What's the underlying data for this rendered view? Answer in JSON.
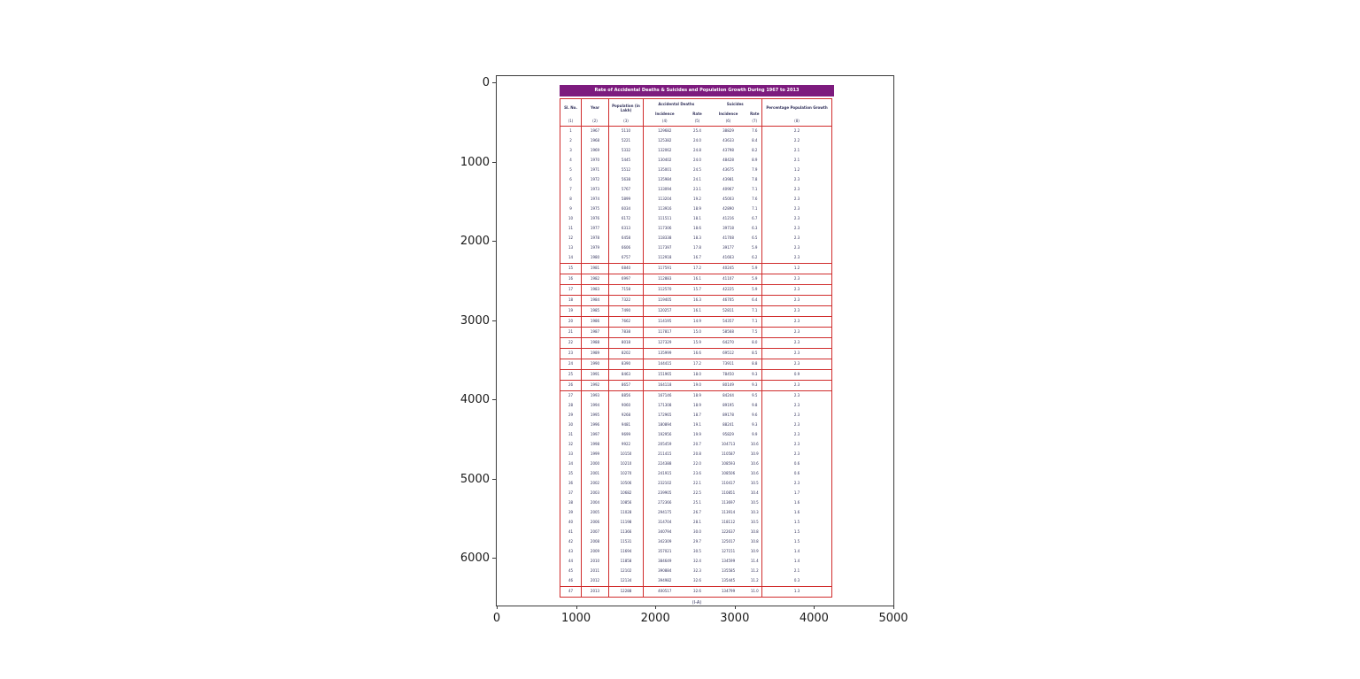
{
  "colors": {
    "table_border": "#d02c2c",
    "title_bar_bg": "#7d1b7e",
    "title_bar_text": "#ffffff",
    "table_text": "#33335c"
  },
  "chart_data": {
    "type": "table",
    "title": "Rate of Accidental Deaths & Suicides and Population Growth During 1967 to 2013",
    "caption": "(I-A)",
    "axes": {
      "x_ticks": [
        "0",
        "1000",
        "2000",
        "3000",
        "4000",
        "5000"
      ],
      "y_ticks": [
        "0",
        "1000",
        "2000",
        "3000",
        "4000",
        "5000",
        "6000"
      ],
      "xlim": [
        0,
        5000
      ],
      "ylim": [
        0,
        6600
      ],
      "grid": false
    },
    "headers": {
      "sl_no": "Sl. No.",
      "year": "Year",
      "population": "Population (in Lakh)",
      "accidental_deaths": "Accidental Deaths",
      "suicides": "Suicides",
      "percentage_growth": "Percentage Population Growth"
    },
    "sub_headers": [
      "Incidence",
      "Rate",
      "Incidence",
      "Rate"
    ],
    "col_numbers": [
      "(1)",
      "(2)",
      "(3)",
      "(4)",
      "(5)",
      "(6)",
      "(7)",
      "(8)"
    ],
    "highlighted_years": [
      "1981",
      "1982",
      "1983",
      "1984",
      "1985",
      "1986",
      "1987",
      "1988",
      "1989",
      "1990",
      "1991",
      "1992",
      "2013"
    ],
    "rows": [
      [
        "1",
        "1967",
        "5110",
        "129682",
        "25.4",
        "38829",
        "7.6",
        "2.2"
      ],
      [
        "2",
        "1968",
        "5221",
        "125382",
        "24.0",
        "43633",
        "8.4",
        "2.2"
      ],
      [
        "3",
        "1969",
        "5332",
        "132062",
        "24.8",
        "43798",
        "8.2",
        "2.1"
      ],
      [
        "4",
        "1970",
        "5445",
        "130402",
        "24.0",
        "48428",
        "8.9",
        "2.1"
      ],
      [
        "5",
        "1971",
        "5512",
        "135001",
        "24.5",
        "43675",
        "7.9",
        "1.2"
      ],
      [
        "6",
        "1972",
        "5638",
        "135984",
        "24.1",
        "43981",
        "7.8",
        "2.3"
      ],
      [
        "7",
        "1973",
        "5767",
        "133094",
        "23.1",
        "40967",
        "7.1",
        "2.3"
      ],
      [
        "8",
        "1974",
        "5899",
        "113204",
        "19.2",
        "45003",
        "7.6",
        "2.3"
      ],
      [
        "9",
        "1975",
        "6034",
        "113916",
        "18.9",
        "42890",
        "7.1",
        "2.3"
      ],
      [
        "10",
        "1976",
        "6172",
        "111511",
        "18.1",
        "41216",
        "6.7",
        "2.3"
      ],
      [
        "11",
        "1977",
        "6313",
        "117306",
        "18.6",
        "39718",
        "6.3",
        "2.3"
      ],
      [
        "12",
        "1978",
        "6458",
        "118338",
        "18.3",
        "41708",
        "6.5",
        "2.3"
      ],
      [
        "13",
        "1979",
        "6606",
        "117397",
        "17.8",
        "39177",
        "5.9",
        "2.3"
      ],
      [
        "14",
        "1980",
        "6757",
        "112918",
        "16.7",
        "41663",
        "6.2",
        "2.3"
      ],
      [
        "15",
        "1981",
        "6840",
        "117591",
        "17.2",
        "40245",
        "5.9",
        "1.2"
      ],
      [
        "16",
        "1982",
        "6997",
        "112883",
        "16.1",
        "41107",
        "5.9",
        "2.3"
      ],
      [
        "17",
        "1983",
        "7158",
        "112570",
        "15.7",
        "42225",
        "5.9",
        "2.3"
      ],
      [
        "18",
        "1984",
        "7322",
        "119405",
        "16.3",
        "46705",
        "6.4",
        "2.3"
      ],
      [
        "19",
        "1985",
        "7490",
        "120257",
        "16.1",
        "52811",
        "7.1",
        "2.3"
      ],
      [
        "20",
        "1986",
        "7662",
        "114195",
        "14.9",
        "54357",
        "7.1",
        "2.3"
      ],
      [
        "21",
        "1987",
        "7838",
        "117817",
        "15.0",
        "58568",
        "7.5",
        "2.3"
      ],
      [
        "22",
        "1988",
        "8018",
        "127329",
        "15.9",
        "64270",
        "8.0",
        "2.3"
      ],
      [
        "23",
        "1989",
        "8202",
        "135999",
        "16.6",
        "69512",
        "8.5",
        "2.3"
      ],
      [
        "24",
        "1990",
        "8390",
        "144415",
        "17.2",
        "73911",
        "8.8",
        "2.3"
      ],
      [
        "25",
        "1991",
        "8463",
        "151965",
        "18.0",
        "78450",
        "9.3",
        "0.9"
      ],
      [
        "26",
        "1992",
        "8657",
        "164118",
        "19.0",
        "80149",
        "9.3",
        "2.3"
      ],
      [
        "27",
        "1993",
        "8856",
        "167146",
        "18.9",
        "84244",
        "9.5",
        "2.3"
      ],
      [
        "28",
        "1994",
        "9060",
        "171308",
        "18.9",
        "89195",
        "9.8",
        "2.3"
      ],
      [
        "29",
        "1995",
        "9268",
        "172965",
        "18.7",
        "89178",
        "9.6",
        "2.3"
      ],
      [
        "30",
        "1996",
        "9481",
        "180894",
        "19.1",
        "88241",
        "9.3",
        "2.3"
      ],
      [
        "31",
        "1997",
        "9699",
        "192956",
        "19.9",
        "95829",
        "9.9",
        "2.3"
      ],
      [
        "32",
        "1998",
        "9922",
        "205459",
        "20.7",
        "104713",
        "10.6",
        "2.3"
      ],
      [
        "33",
        "1999",
        "10150",
        "211415",
        "20.8",
        "110587",
        "10.9",
        "2.3"
      ],
      [
        "34",
        "2000",
        "10210",
        "224388",
        "22.0",
        "108593",
        "10.6",
        "0.6"
      ],
      [
        "35",
        "2001",
        "10270",
        "241915",
        "23.6",
        "108506",
        "10.6",
        "0.6"
      ],
      [
        "36",
        "2002",
        "10506",
        "232102",
        "22.1",
        "110417",
        "10.5",
        "2.3"
      ],
      [
        "37",
        "2003",
        "10682",
        "239905",
        "22.5",
        "110851",
        "10.4",
        "1.7"
      ],
      [
        "38",
        "2004",
        "10856",
        "272366",
        "25.1",
        "113697",
        "10.5",
        "1.6"
      ],
      [
        "39",
        "2005",
        "11028",
        "294175",
        "26.7",
        "113914",
        "10.3",
        "1.6"
      ],
      [
        "40",
        "2006",
        "11198",
        "314704",
        "28.1",
        "118112",
        "10.5",
        "1.5"
      ],
      [
        "41",
        "2007",
        "11366",
        "340794",
        "30.0",
        "122637",
        "10.8",
        "1.5"
      ],
      [
        "42",
        "2008",
        "11531",
        "342309",
        "29.7",
        "125017",
        "10.8",
        "1.5"
      ],
      [
        "43",
        "2009",
        "11694",
        "357021",
        "30.5",
        "127151",
        "10.9",
        "1.4"
      ],
      [
        "44",
        "2010",
        "11858",
        "384649",
        "32.4",
        "134599",
        "11.4",
        "1.4"
      ],
      [
        "45",
        "2011",
        "12102",
        "390884",
        "32.3",
        "135585",
        "11.2",
        "2.1"
      ],
      [
        "46",
        "2012",
        "12134",
        "394982",
        "32.6",
        "135445",
        "11.2",
        "0.3"
      ],
      [
        "47",
        "2013",
        "12288",
        "400517",
        "32.6",
        "134799",
        "11.0",
        "1.3"
      ]
    ]
  }
}
